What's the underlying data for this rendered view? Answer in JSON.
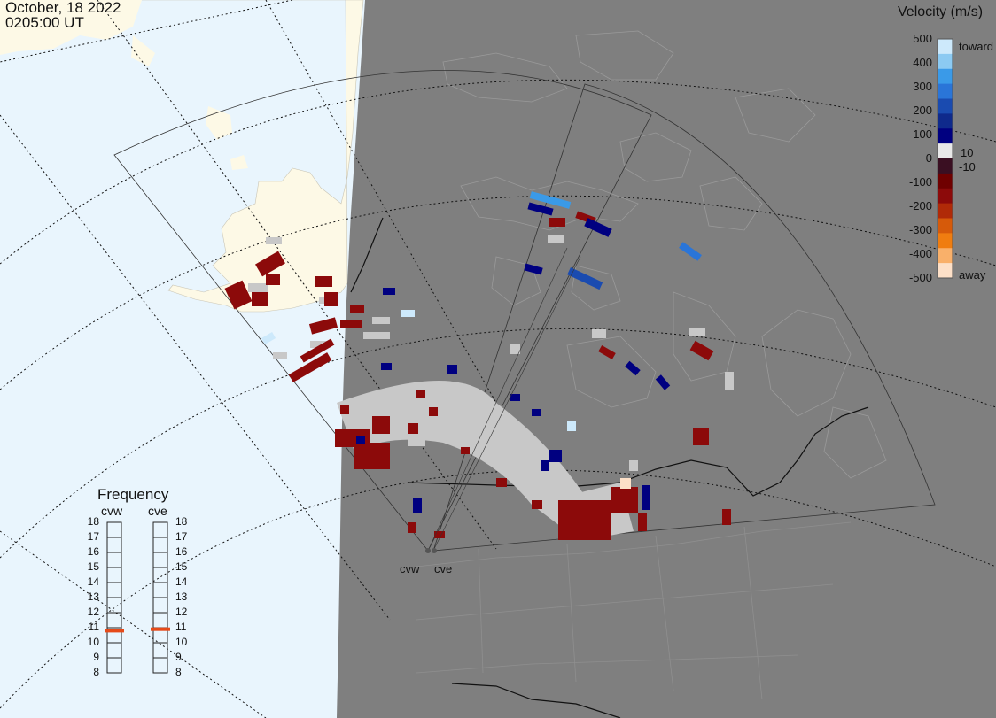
{
  "header": {
    "date": "October, 18 2022",
    "time": "0205:00 UT"
  },
  "colorbar": {
    "title": "Velocity (m/s)",
    "ticks": [
      "500",
      "400",
      "300",
      "200",
      "100",
      "0",
      "-100",
      "-200",
      "-300",
      "-400",
      "-500"
    ],
    "toward_label": "toward",
    "away_label": "away",
    "pos_threshold": "10",
    "neg_threshold": "-10",
    "colors": [
      "#fde0c8",
      "#f9b06a",
      "#f07d10",
      "#d65a0a",
      "#b02a08",
      "#8c0a0a",
      "#6f0000",
      "#3a0f22",
      "#e8e8e8",
      "#000080",
      "#0f2a8c",
      "#1a4bb0",
      "#2a75d8",
      "#3a9ae8",
      "#8ccaf2",
      "#cde9fb"
    ]
  },
  "frequency": {
    "title": "Frequency",
    "radars": [
      "cvw",
      "cve"
    ],
    "scale": [
      "18",
      "17",
      "16",
      "15",
      "14",
      "13",
      "12",
      "11",
      "10",
      "9",
      "8"
    ],
    "cvw_mhz": 10.8,
    "cve_mhz": 10.9,
    "marker_color": "#e64a19"
  },
  "stations": [
    {
      "name": "cvw"
    },
    {
      "name": "cve"
    }
  ],
  "map_colors": {
    "ocean": "#e9f5fd",
    "land_day": "#fdf9e6",
    "night": "#7f7f7f",
    "ground_scatter": "#c8c8c8"
  }
}
